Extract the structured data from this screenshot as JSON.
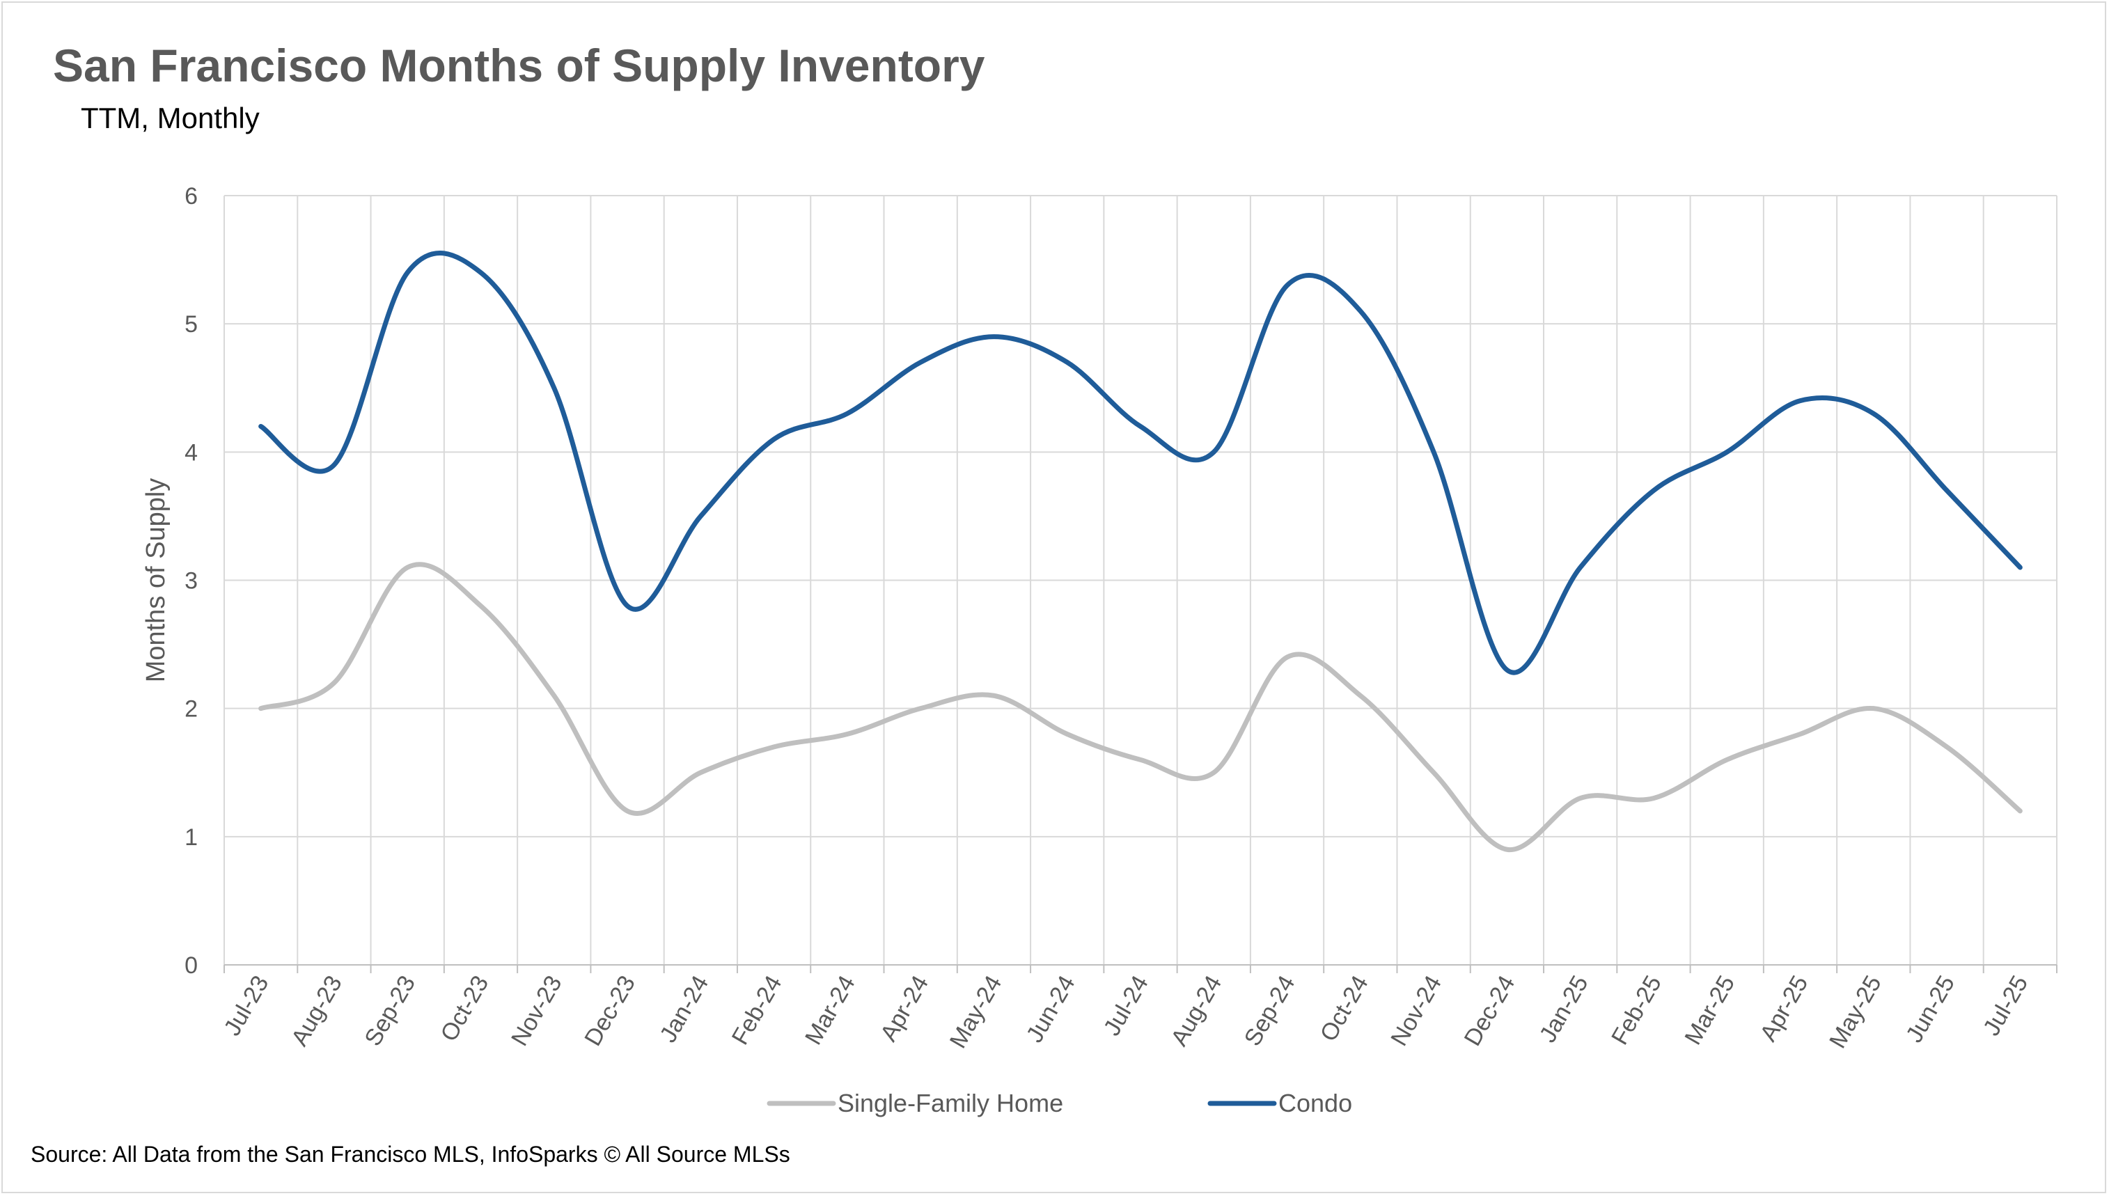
{
  "title": "San Francisco Months of Supply Inventory",
  "subtitle": "TTM, Monthly",
  "source": "Source: All Data from the San Francisco MLS, InfoSparks © All Source MLSs",
  "chart_data": {
    "type": "line",
    "title": "San Francisco Months of Supply Inventory",
    "subtitle": "TTM, Monthly",
    "xlabel": "",
    "ylabel": "Months of Supply",
    "ylim": [
      0,
      6
    ],
    "yticks": [
      "0",
      "1",
      "2",
      "3",
      "4",
      "5",
      "6"
    ],
    "grid": true,
    "smooth": true,
    "legend_position": "bottom",
    "categories": [
      "Jul-23",
      "Aug-23",
      "Sep-23",
      "Oct-23",
      "Nov-23",
      "Dec-23",
      "Jan-24",
      "Feb-24",
      "Mar-24",
      "Apr-24",
      "May-24",
      "Jun-24",
      "Jul-24",
      "Aug-24",
      "Sep-24",
      "Oct-24",
      "Nov-24",
      "Dec-24",
      "Jan-25",
      "Feb-25",
      "Mar-25",
      "Apr-25",
      "May-25",
      "Jun-25",
      "Jul-25"
    ],
    "series": [
      {
        "name": "Single-Family Home",
        "color": "#bfbfbf",
        "values": [
          2.0,
          2.2,
          3.1,
          2.8,
          2.1,
          1.2,
          1.5,
          1.7,
          1.8,
          2.0,
          2.1,
          1.8,
          1.6,
          1.5,
          2.4,
          2.1,
          1.5,
          0.9,
          1.3,
          1.3,
          1.6,
          1.8,
          2.0,
          1.7,
          1.2
        ]
      },
      {
        "name": "Condo",
        "color": "#1f5c99",
        "values": [
          4.2,
          3.9,
          5.4,
          5.4,
          4.5,
          2.8,
          3.5,
          4.1,
          4.3,
          4.7,
          4.9,
          4.7,
          4.2,
          4.0,
          5.3,
          5.1,
          4.0,
          2.3,
          3.1,
          3.7,
          4.0,
          4.4,
          4.3,
          3.7,
          3.1
        ]
      }
    ]
  }
}
